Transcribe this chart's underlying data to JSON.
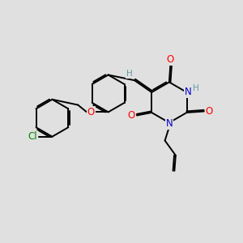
{
  "bg_color": "#e0e0e0",
  "bond_color": "#000000",
  "bond_width": 1.4,
  "dbo": 0.06,
  "atom_colors": {
    "O": "#ff0000",
    "N": "#0000cc",
    "Cl": "#008800",
    "H": "#6699aa",
    "C": "#000000"
  },
  "fs": 8.5
}
